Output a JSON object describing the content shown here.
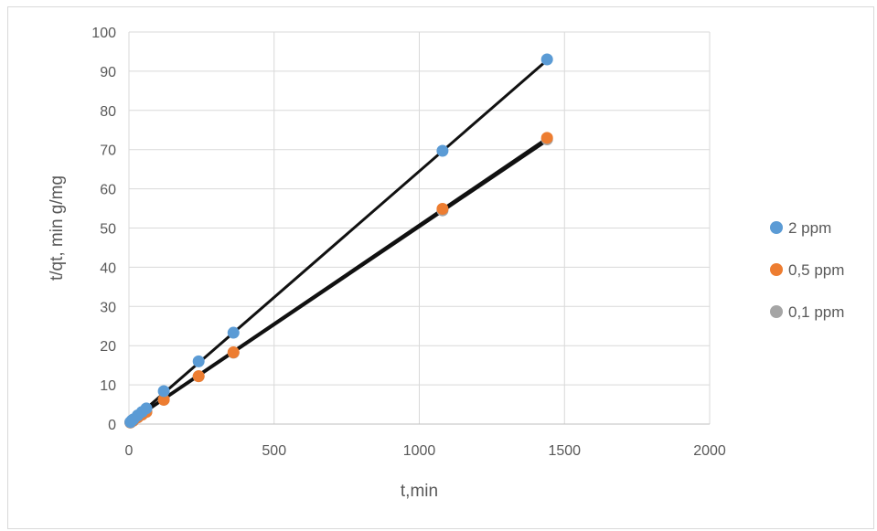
{
  "chart_data": {
    "type": "scatter",
    "title": "",
    "xlabel": "t,min",
    "ylabel": "t/qt, min g/mg",
    "xlim": [
      0,
      2000
    ],
    "ylim": [
      0,
      100
    ],
    "xticks": [
      0,
      500,
      1000,
      1500,
      2000
    ],
    "yticks": [
      0,
      10,
      20,
      30,
      40,
      50,
      60,
      70,
      80,
      90,
      100
    ],
    "grid": true,
    "legend_position": "right",
    "series": [
      {
        "name": "2 ppm",
        "color": "#5b9bd5",
        "points": [
          [
            5,
            0.5
          ],
          [
            10,
            0.9
          ],
          [
            15,
            1.2
          ],
          [
            30,
            2.2
          ],
          [
            45,
            3.1
          ],
          [
            60,
            4.0
          ],
          [
            120,
            8.4
          ],
          [
            240,
            16.0
          ],
          [
            360,
            23.3
          ],
          [
            1080,
            69.7
          ],
          [
            1440,
            93.0
          ]
        ],
        "trendline": [
          [
            10,
            0.8
          ],
          [
            1440,
            92.8
          ]
        ]
      },
      {
        "name": "0,5 ppm",
        "color": "#ed7d31",
        "points": [
          [
            5,
            0.4
          ],
          [
            10,
            0.7
          ],
          [
            15,
            0.9
          ],
          [
            30,
            1.7
          ],
          [
            45,
            2.4
          ],
          [
            60,
            3.1
          ],
          [
            120,
            6.2
          ],
          [
            240,
            12.2
          ],
          [
            360,
            18.3
          ],
          [
            1080,
            54.9
          ],
          [
            1440,
            73.0
          ]
        ],
        "trendline": [
          [
            10,
            1.0
          ],
          [
            1440,
            72.9
          ]
        ]
      },
      {
        "name": "0,1 ppm",
        "color": "#a5a5a5",
        "points": [
          [
            5,
            0.4
          ],
          [
            10,
            0.7
          ],
          [
            15,
            0.9
          ],
          [
            30,
            1.7
          ],
          [
            45,
            2.4
          ],
          [
            60,
            3.1
          ],
          [
            120,
            6.2
          ],
          [
            240,
            12.2
          ],
          [
            360,
            18.2
          ],
          [
            1080,
            54.5
          ],
          [
            1440,
            72.6
          ]
        ],
        "trendline": [
          [
            10,
            0.8
          ],
          [
            1440,
            72.3
          ]
        ]
      }
    ]
  }
}
